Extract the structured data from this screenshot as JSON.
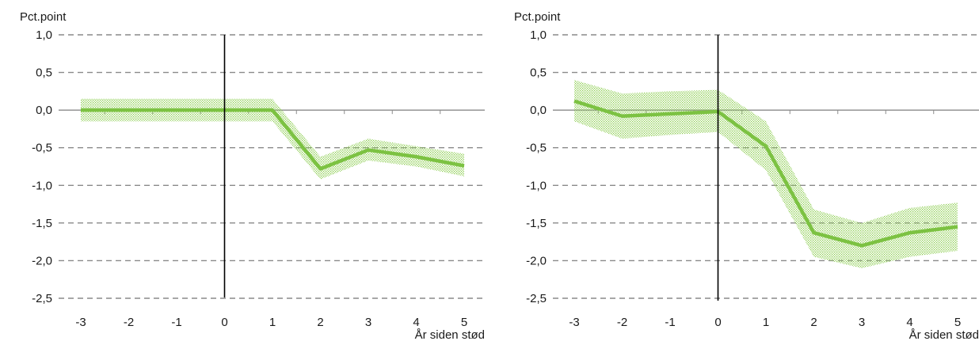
{
  "colors": {
    "line": "#7cc242",
    "band": "#8fcf55",
    "grid": "#8a8a8a",
    "axis": "#000000"
  },
  "chart_data": [
    {
      "type": "line",
      "ylabel": "Pct.point",
      "xlabel": "År siden stød",
      "ylim": [
        -2.5,
        1.0
      ],
      "yticks": [
        1.0,
        0.5,
        0.0,
        -0.5,
        -1.0,
        -1.5,
        -2.0,
        -2.5
      ],
      "ytick_labels": [
        "1,0",
        "0,5",
        "0,0",
        "-0,5",
        "-1,0",
        "-1,5",
        "-2,0",
        "-2,5"
      ],
      "x": [
        -3,
        -2,
        -1,
        0,
        1,
        2,
        3,
        4,
        5
      ],
      "xtick_labels": [
        "-3",
        "-2",
        "-1",
        "0",
        "1",
        "2",
        "3",
        "4",
        "5"
      ],
      "grid": "horizontal-dashed",
      "vline_at": 0,
      "series": [
        {
          "values": [
            0.0,
            0.0,
            0.0,
            0.0,
            0.0,
            -0.78,
            -0.53,
            -0.62,
            -0.74
          ],
          "lower": [
            -0.15,
            -0.15,
            -0.15,
            -0.15,
            -0.15,
            -0.92,
            -0.67,
            -0.75,
            -0.88
          ],
          "upper": [
            0.15,
            0.15,
            0.15,
            0.15,
            0.15,
            -0.62,
            -0.38,
            -0.48,
            -0.58
          ]
        }
      ]
    },
    {
      "type": "line",
      "ylabel": "Pct.point",
      "xlabel": "År siden stød",
      "ylim": [
        -2.5,
        1.0
      ],
      "yticks": [
        1.0,
        0.5,
        0.0,
        -0.5,
        -1.0,
        -1.5,
        -2.0,
        -2.5
      ],
      "ytick_labels": [
        "1,0",
        "0,5",
        "0,0",
        "-0,5",
        "-1,0",
        "-1,5",
        "-2,0",
        "-2,5"
      ],
      "x": [
        -3,
        -2,
        -1,
        0,
        1,
        2,
        3,
        4,
        5
      ],
      "xtick_labels": [
        "-3",
        "-2",
        "-1",
        "0",
        "1",
        "2",
        "3",
        "4",
        "5"
      ],
      "grid": "horizontal-dashed",
      "vline_at": 0,
      "series": [
        {
          "values": [
            0.12,
            -0.08,
            -0.05,
            -0.02,
            -0.48,
            -1.63,
            -1.8,
            -1.63,
            -1.55
          ],
          "lower": [
            -0.15,
            -0.38,
            -0.33,
            -0.29,
            -0.8,
            -1.95,
            -2.1,
            -1.95,
            -1.87
          ],
          "upper": [
            0.4,
            0.22,
            0.25,
            0.27,
            -0.15,
            -1.32,
            -1.5,
            -1.3,
            -1.23
          ]
        }
      ]
    }
  ]
}
